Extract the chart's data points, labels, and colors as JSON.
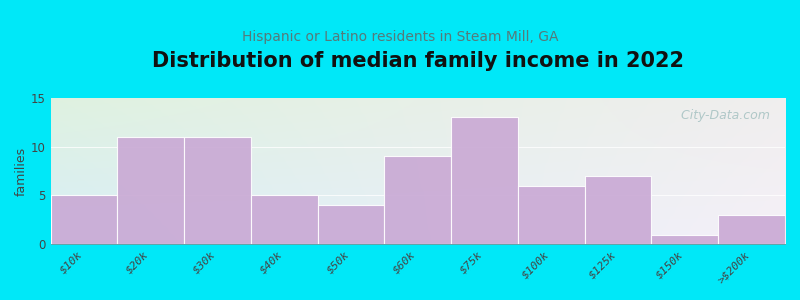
{
  "title": "Distribution of median family income in 2022",
  "subtitle": "Hispanic or Latino residents in Steam Mill, GA",
  "categories": [
    "$10k",
    "$20k",
    "$30k",
    "$40k",
    "$50k",
    "$60k",
    "$75k",
    "$100k",
    "$125k",
    "$150k",
    ">$200k"
  ],
  "values": [
    5,
    11,
    11,
    5,
    4,
    9,
    13,
    6,
    7,
    1,
    3
  ],
  "bar_color": "#c9a8d4",
  "background_outer": "#00e8f8",
  "background_plot_topleft": "#dff2e0",
  "background_plot_topright": "#f0eeee",
  "background_plot_bottomleft": "#d8eef8",
  "background_plot_bottomright": "#f5f0f8",
  "ylabel": "families",
  "ylim": [
    0,
    15
  ],
  "yticks": [
    0,
    5,
    10,
    15
  ],
  "title_fontsize": 15,
  "subtitle_fontsize": 10,
  "subtitle_color": "#557a7a",
  "watermark": " City-Data.com",
  "watermark_color": "#b0c8c8"
}
